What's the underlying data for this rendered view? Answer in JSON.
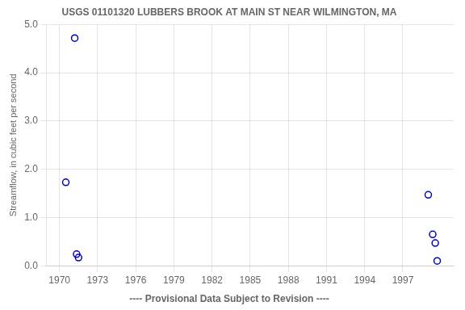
{
  "chart_data": {
    "type": "scatter",
    "title": "USGS 01101320 LUBBERS BROOK AT MAIN ST NEAR WILMINGTON, MA",
    "ylabel": "Streamflow, in cubic feet per second",
    "annotations": [
      "---- Provisional Data Subject to Revision ----"
    ],
    "x": [
      1970.5,
      1971.2,
      1971.35,
      1971.5,
      1999.0,
      1999.35,
      1999.55,
      1999.7
    ],
    "values": [
      1.73,
      4.72,
      0.24,
      0.17,
      1.47,
      0.65,
      0.47,
      0.1
    ],
    "color": "#0000bb",
    "marker": "circle",
    "xlim": [
      1969,
      2001
    ],
    "ylim": [
      0.0,
      5.0
    ],
    "xticks": [
      1970,
      1973,
      1976,
      1979,
      1982,
      1985,
      1988,
      1991,
      1994,
      1997
    ],
    "yticks": [
      {
        "value": 0.0,
        "label": "0.0"
      },
      {
        "value": 1.0,
        "label": "1.0"
      },
      {
        "value": 2.0,
        "label": "2.0"
      },
      {
        "value": 3.0,
        "label": "3.0"
      },
      {
        "value": 4.0,
        "label": "4.0"
      },
      {
        "value": 5.0,
        "label": "5.0"
      }
    ],
    "grid": true
  }
}
